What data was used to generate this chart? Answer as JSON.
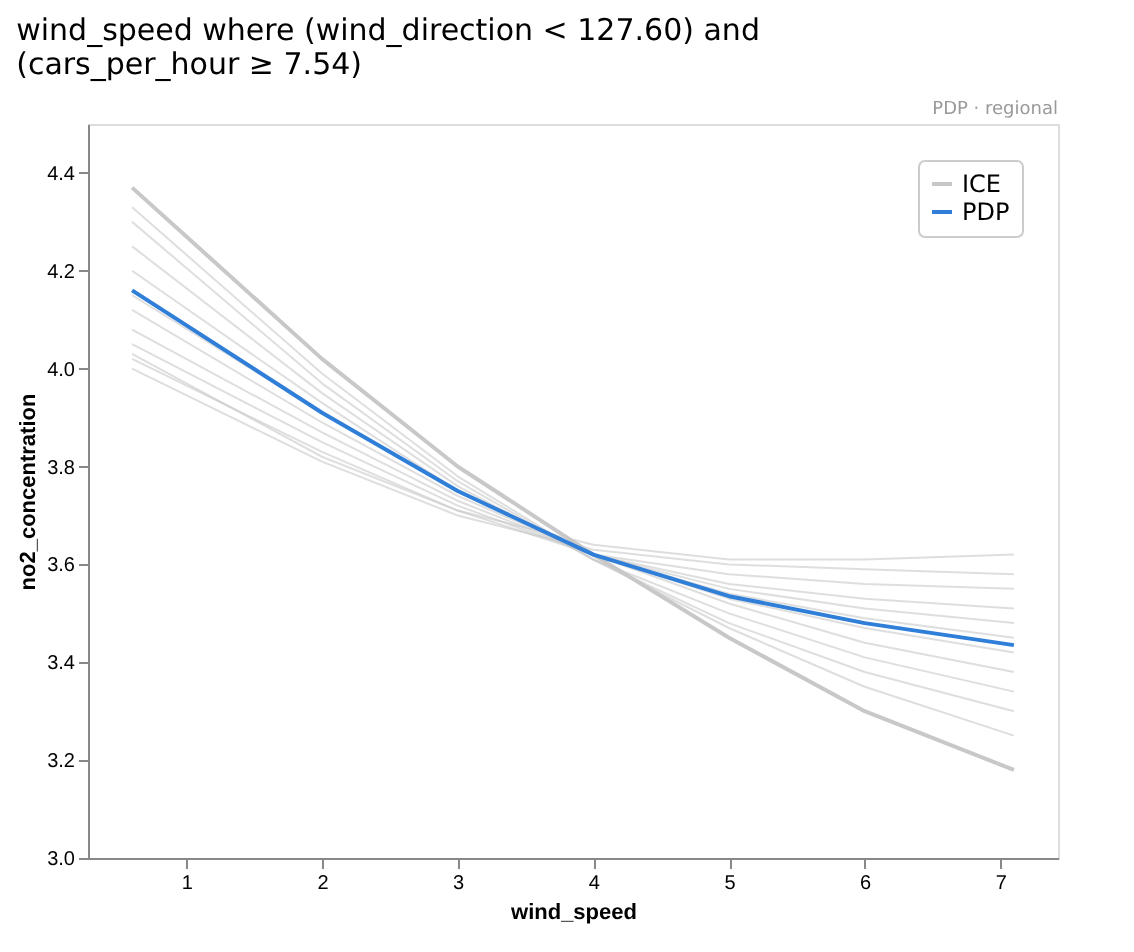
{
  "chart_data": {
    "type": "line",
    "title": "wind_speed where (wind_direction < 127.60) and\n(cars_per_hour ≥ 7.54)",
    "xlabel": "wind_speed",
    "ylabel": "no2_concentration",
    "annotations": [
      "PDP · regional"
    ],
    "x": [
      0.6,
      2,
      3,
      4,
      5,
      6,
      7.1
    ],
    "xlim": [
      0.275,
      7.425
    ],
    "xticks": [
      1,
      2,
      3,
      4,
      5,
      6,
      7
    ],
    "ylim": [
      3.0,
      4.5
    ],
    "yticks": [
      {
        "value": 3.0,
        "label": "3.0"
      },
      {
        "value": 3.2,
        "label": "3.2"
      },
      {
        "value": 3.4,
        "label": "3.4"
      },
      {
        "value": 3.6,
        "label": "3.6"
      },
      {
        "value": 3.8,
        "label": "3.8"
      },
      {
        "value": 4.0,
        "label": "4.0"
      },
      {
        "value": 4.2,
        "label": "4.2"
      },
      {
        "value": 4.4,
        "label": "4.4"
      }
    ],
    "grid": false,
    "legend": "top right",
    "marker": "none",
    "line_style": "solid",
    "series": [
      {
        "name": "ICE",
        "color": "#c8c8c8",
        "values": [
          4.37,
          4.02,
          3.8,
          3.62,
          3.45,
          3.3,
          3.18
        ]
      },
      {
        "color": "#c8c8c8",
        "values": [
          4.33,
          3.99,
          3.78,
          3.61,
          3.47,
          3.35,
          3.25
        ]
      },
      {
        "color": "#c8c8c8",
        "values": [
          4.3,
          3.97,
          3.77,
          3.61,
          3.48,
          3.38,
          3.3
        ]
      },
      {
        "color": "#c8c8c8",
        "values": [
          4.25,
          3.95,
          3.76,
          3.61,
          3.5,
          3.41,
          3.34
        ]
      },
      {
        "color": "#c8c8c8",
        "values": [
          4.2,
          3.93,
          3.75,
          3.62,
          3.52,
          3.44,
          3.38
        ]
      },
      {
        "color": "#c8c8c8",
        "values": [
          4.15,
          3.91,
          3.75,
          3.62,
          3.53,
          3.47,
          3.42
        ]
      },
      {
        "color": "#c8c8c8",
        "values": [
          4.12,
          3.89,
          3.74,
          3.62,
          3.54,
          3.49,
          3.45
        ]
      },
      {
        "color": "#c8c8c8",
        "values": [
          4.08,
          3.87,
          3.73,
          3.62,
          3.55,
          3.51,
          3.48
        ]
      },
      {
        "color": "#c8c8c8",
        "values": [
          4.05,
          3.85,
          3.72,
          3.62,
          3.56,
          3.53,
          3.51
        ]
      },
      {
        "color": "#c8c8c8",
        "values": [
          4.02,
          3.83,
          3.71,
          3.62,
          3.58,
          3.56,
          3.55
        ]
      },
      {
        "color": "#c8c8c8",
        "values": [
          4.0,
          3.81,
          3.7,
          3.63,
          3.6,
          3.59,
          3.58
        ]
      },
      {
        "color": "#c8c8c8",
        "values": [
          4.03,
          3.82,
          3.71,
          3.64,
          3.61,
          3.61,
          3.62
        ]
      },
      {
        "name": "PDP",
        "color": "#2f7ed8",
        "values": [
          4.16,
          3.91,
          3.75,
          3.62,
          3.535,
          3.48,
          3.435
        ]
      }
    ]
  }
}
